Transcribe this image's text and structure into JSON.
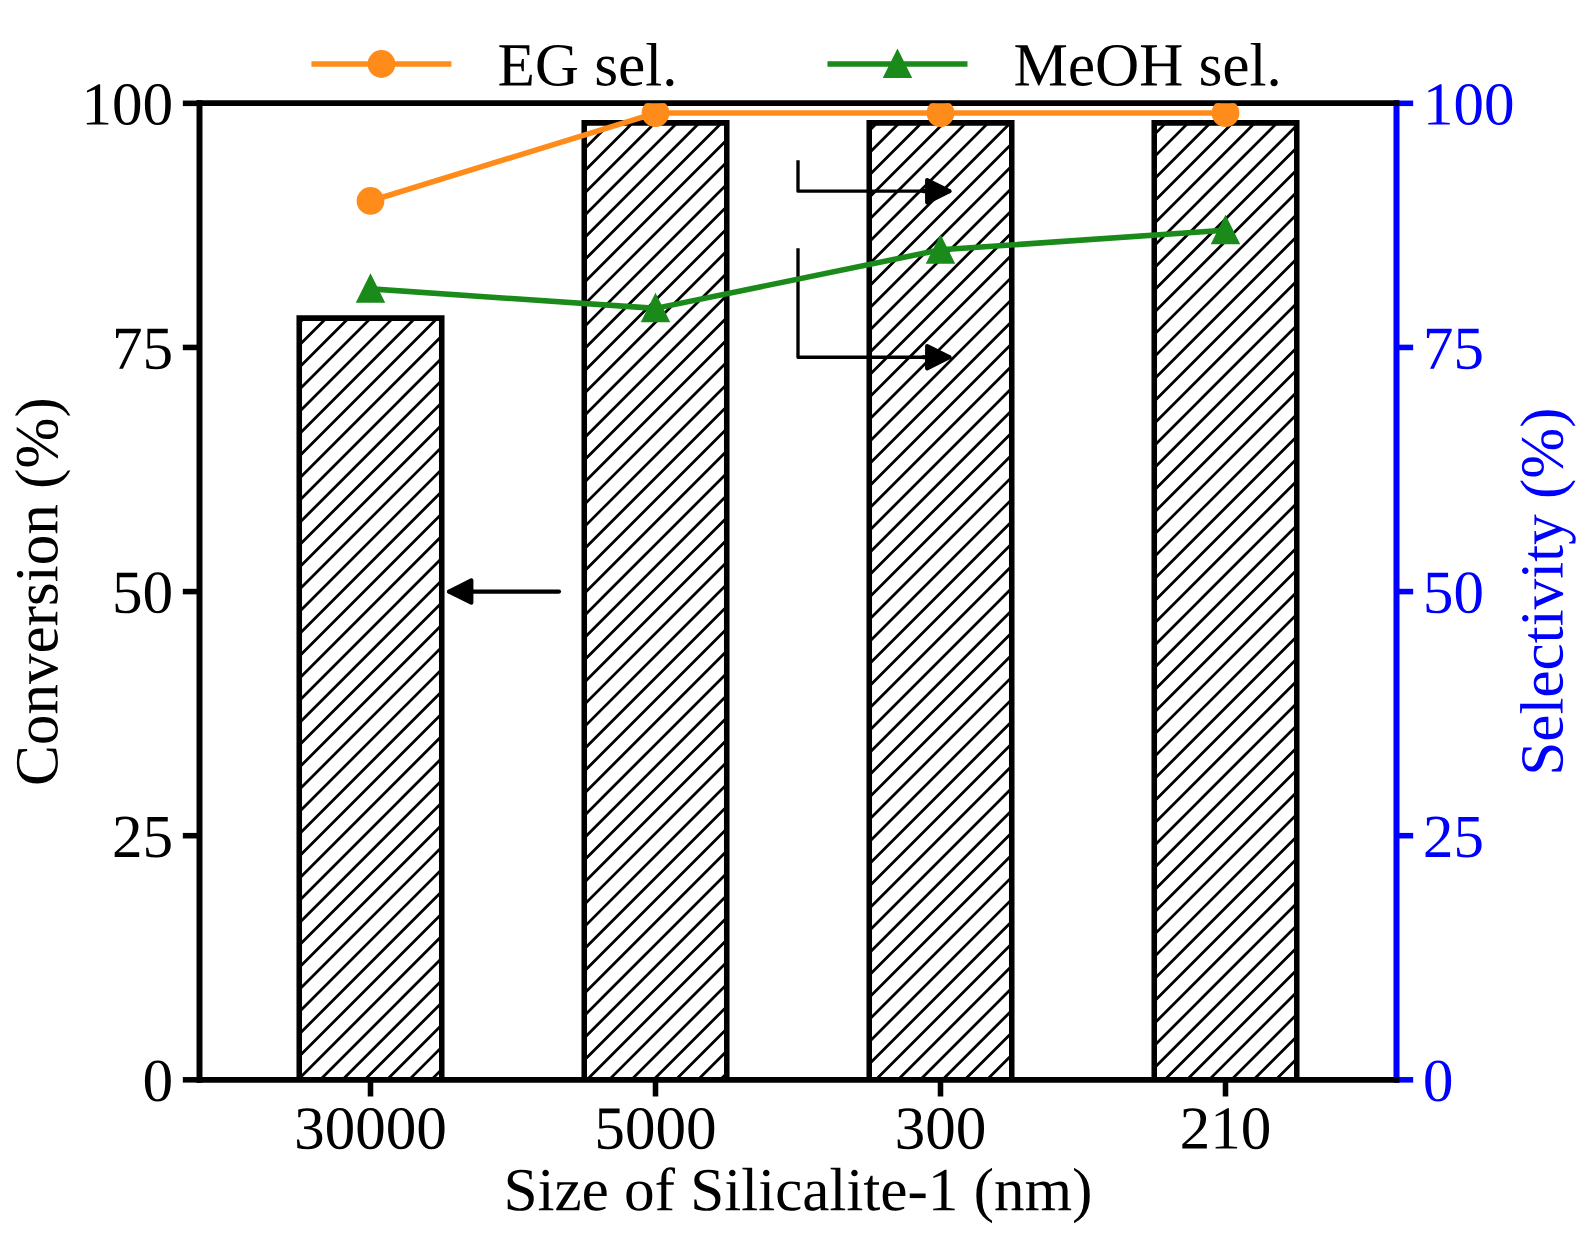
{
  "chart_data": {
    "type": "bar",
    "xlabel": "Size of Silicalite-1 (nm)",
    "ylabel": "Conversion (%)",
    "y2label": "Selectivity (%)",
    "categories": [
      "30000",
      "5000",
      "300",
      "210"
    ],
    "series": [
      {
        "color": "#000000",
        "values": [
          78,
          98,
          98,
          98
        ]
      },
      {
        "type": "line",
        "name": "EG sel.",
        "color": "#ff8c1a",
        "axis": "y2",
        "marker": "circle",
        "values": [
          90,
          99,
          99,
          99
        ]
      },
      {
        "type": "line",
        "name": "MeOH sel.",
        "color": "#1a8a1a",
        "axis": "y2",
        "marker": "triangle",
        "values": [
          81,
          79,
          85,
          87
        ]
      }
    ],
    "ylim": [
      0,
      100
    ],
    "yticks": [
      0,
      25,
      50,
      75,
      100
    ],
    "y2lim": [
      0,
      100
    ],
    "y2ticks": [
      0,
      25,
      50,
      75,
      100
    ],
    "grid": false,
    "legend": "top"
  }
}
